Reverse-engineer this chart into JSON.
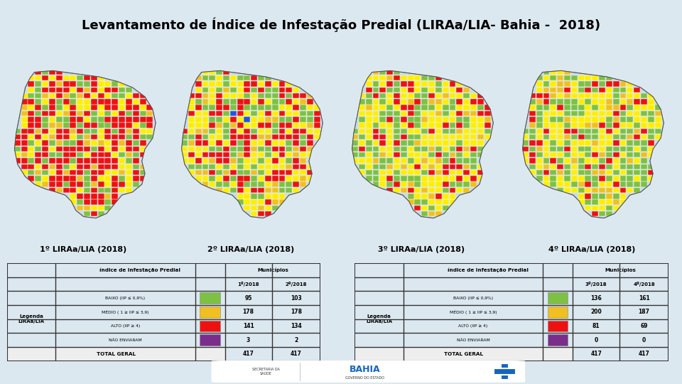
{
  "title": "Levantamento de Índice de Infestação Predial (LIRAa/LIA- Bahia -  2018)",
  "title_fontsize": 13,
  "bg_color": "#dce8f0",
  "map_labels": [
    "1º LIRAa/LIA (2018)",
    "2º LIRAa/LIA (2018)",
    "3º LIRAa/LIA (2018)",
    "4º LIRAa/LIA (2018)"
  ],
  "table1_header_col1": "índice de Infestação Predial",
  "table1_header_col2": "Municípios",
  "table1_sub1": "1º/2018",
  "table1_sub2": "2º/2018",
  "table1_rows": [
    [
      "BAIXO (IIP ≤ 0,9%)",
      "#7dc142",
      "95",
      "103"
    ],
    [
      "MÉDIO ( 1 ≥ IIP ≤ 3,9)",
      "#f0c020",
      "178",
      "178"
    ],
    [
      "ALTO (IIP ≥ 4)",
      "#ee1111",
      "141",
      "134"
    ],
    [
      "NÃO ENVIARAM",
      "#7b2d8b",
      "3",
      "2"
    ]
  ],
  "table1_total": [
    "TOTAL GERAL",
    "417",
    "417"
  ],
  "table2_header_col1": "índice de Infestação Predial",
  "table2_header_col2": "Municípios",
  "table2_sub1": "3º/2018",
  "table2_sub2": "4º/2018",
  "table2_rows": [
    [
      "BAIXO (IIP ≤ 0,9%)",
      "#7dc142",
      "136",
      "161"
    ],
    [
      "MÉDIO ( 1 ≥ IIP ≤ 3,9)",
      "#f0c020",
      "200",
      "187"
    ],
    [
      "ALTO (IIP ≥ 4)",
      "#ee1111",
      "81",
      "69"
    ],
    [
      "NÃO ENVIARAM",
      "#7b2d8b",
      "0",
      "0"
    ]
  ],
  "table2_total": [
    "TOTAL GERAL",
    "417",
    "417"
  ],
  "footer_bg": "#1565c0",
  "legend_label": "Legenda\nLIRAa/LIA",
  "white": "#ffffff",
  "black": "#000000",
  "border_color": "#555555"
}
